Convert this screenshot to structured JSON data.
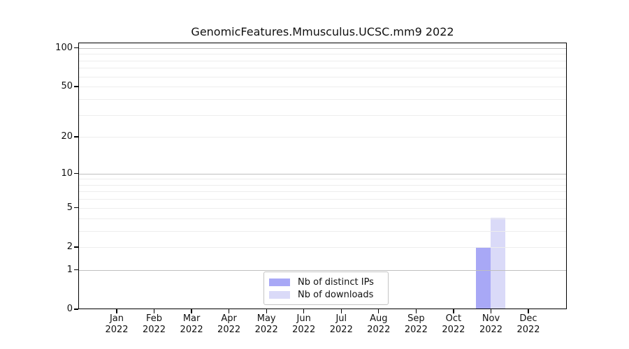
{
  "chart_data": {
    "type": "bar",
    "title": "GenomicFeatures.Mmusculus.UCSC.mm9 2022",
    "categories": [
      "Jan 2022",
      "Feb 2022",
      "Mar 2022",
      "Apr 2022",
      "May 2022",
      "Jun 2022",
      "Jul 2022",
      "Aug 2022",
      "Sep 2022",
      "Oct 2022",
      "Nov 2022",
      "Dec 2022"
    ],
    "series": [
      {
        "name": "Nb of distinct IPs",
        "color": "#a8a8f6",
        "values": [
          0,
          0,
          0,
          0,
          0,
          0,
          0,
          0,
          0,
          0,
          2,
          0
        ]
      },
      {
        "name": "Nb of downloads",
        "color": "#dadaf8",
        "values": [
          0,
          0,
          0,
          0,
          0,
          0,
          0,
          0,
          0,
          0,
          4,
          0
        ]
      }
    ],
    "yticks": [
      0,
      1,
      2,
      5,
      10,
      20,
      50,
      100
    ],
    "yscale": "log10(1+v)",
    "ylim": [
      0,
      110
    ],
    "xlabel": "",
    "ylabel": "",
    "grid": true,
    "legend_position": "bottom-center"
  },
  "y_axis": {
    "grid_major_values": [
      1,
      10,
      100
    ],
    "grid_minor_values": [
      2,
      3,
      4,
      5,
      6,
      7,
      8,
      9,
      20,
      30,
      40,
      50,
      60,
      70,
      80,
      90
    ]
  },
  "colors": {
    "background": "#ffffff",
    "axis": "#000000",
    "grid_major": "#bfbfbf",
    "grid_minor": "#ededed",
    "text": "#111111"
  }
}
